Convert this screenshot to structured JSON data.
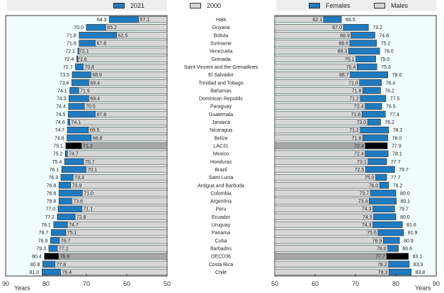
{
  "chart_data": [
    {
      "type": "bar",
      "title": "",
      "panel": "left",
      "orientation": "horizontal",
      "xaxis_reversed": true,
      "xlim": [
        50,
        90
      ],
      "xticks": [
        90,
        80,
        70,
        60,
        50
      ],
      "xlabel": "Years",
      "legend": {
        "placement": "top",
        "entries": [
          {
            "name": "2021",
            "color": "#1f7bc0"
          },
          {
            "name": "2000",
            "color": "#d6d6d6"
          }
        ]
      },
      "categories": [
        "Haiti",
        "Guyana",
        "Bolivia",
        "Suriname",
        "Venezuela",
        "Grenada",
        "Saint Vincent and the Grenadines",
        "El Salvador",
        "Trinidad and Tobago",
        "Bahamas",
        "Dominican Republic",
        "Paraguay",
        "Guatemala",
        "Jamaica",
        "Nicaragua",
        "Belize",
        "LAC31",
        "Mexico",
        "Honduras",
        "Brazil",
        "Saint Lucia",
        "Antigua and Barbuda",
        "Colombia",
        "Argentina",
        "Peru",
        "Ecuador",
        "Uruguay",
        "Panama",
        "Cuba",
        "Barbados",
        "OECD36",
        "Costa Rica",
        "Chile"
      ],
      "series": [
        {
          "name": "2021",
          "values": [
            64.3,
            70.0,
            71.8,
            71.8,
            72.1,
            72.4,
            72.7,
            73.5,
            73.6,
            74.1,
            74.3,
            74.4,
            74.5,
            74.6,
            74.7,
            74.8,
            75.1,
            75.2,
            75.4,
            76.1,
            76.3,
            76.8,
            76.8,
            76.8,
            77.0,
            77.2,
            78.1,
            78.7,
            78.9,
            79.3,
            80.4,
            80.8,
            81.0
          ]
        },
        {
          "name": "2000",
          "values": [
            57.1,
            65.2,
            62.5,
            67.8,
            72.1,
            72.6,
            70.8,
            68.9,
            69.4,
            71.9,
            69.4,
            70.5,
            67.8,
            74.1,
            69.5,
            68.8,
            71.2,
            74.7,
            70.7,
            70.1,
            73.3,
            73.9,
            71.0,
            73.6,
            71.1,
            72.8,
            74.7,
            75.1,
            76.7,
            77.2,
            76.9,
            77.8,
            76.4
          ]
        }
      ],
      "highlight": [
        "LAC31",
        "OECD36"
      ]
    },
    {
      "type": "bar",
      "title": "",
      "panel": "right",
      "orientation": "horizontal",
      "xlim": [
        50,
        90
      ],
      "xticks": [
        50,
        60,
        70,
        80,
        90
      ],
      "xlabel": "Years",
      "legend": {
        "placement": "top",
        "entries": [
          {
            "name": "Females",
            "color": "#1f7bc0"
          },
          {
            "name": "Males",
            "color": "#d6d6d6"
          }
        ]
      },
      "categories": [
        "Haiti",
        "Guyana",
        "Bolivia",
        "Suriname",
        "Venezuela",
        "Grenada",
        "Saint Vincent and the Grenadines",
        "El Salvador",
        "Trinidad and Tobago",
        "Bahamas",
        "Dominican Republic",
        "Paraguay",
        "Guatemala",
        "Jamaica",
        "Nicaragua",
        "Belize",
        "LAC31",
        "Mexico",
        "Honduras",
        "Brazil",
        "Saint Lucia",
        "Antigua and Barbuda",
        "Colombia",
        "Argentina",
        "Peru",
        "Ecuador",
        "Uruguay",
        "Panama",
        "Cuba",
        "Barbados",
        "OECD36",
        "Costa Rica",
        "Chile"
      ],
      "series": [
        {
          "name": "Males",
          "values": [
            62.1,
            67.0,
            68.9,
            68.6,
            68.3,
            70.1,
            70.4,
            68.7,
            71.0,
            71.8,
            71.2,
            72.4,
            71.6,
            73.0,
            71.2,
            71.8,
            72.4,
            72.4,
            73.1,
            72.5,
            75.0,
            76.0,
            73.7,
            73.4,
            74.3,
            74.5,
            74.3,
            75.6,
            76.9,
            78.0,
            77.7,
            78.2,
            78.3
          ]
        },
        {
          "name": "Females",
          "values": [
            66.5,
            73.2,
            74.8,
            75.2,
            76.0,
            75.0,
            75.3,
            78.0,
            76.4,
            76.2,
            77.5,
            76.5,
            77.4,
            76.2,
            78.2,
            78.0,
            77.9,
            78.1,
            77.7,
            79.7,
            77.7,
            78.2,
            80.0,
            80.1,
            79.7,
            80.0,
            81.6,
            81.9,
            80.9,
            80.6,
            83.1,
            83.3,
            83.8
          ]
        }
      ],
      "highlight": [
        "LAC31",
        "OECD36"
      ]
    }
  ],
  "legends": {
    "left": [
      {
        "label": "2021",
        "color": "#1f7bc0"
      },
      {
        "label": "2000",
        "color": "#d6d6d6"
      }
    ],
    "right": [
      {
        "label": "Females",
        "color": "#1f7bc0"
      },
      {
        "label": "Males",
        "color": "#d6d6d6"
      }
    ]
  },
  "axis": {
    "left_unit": "Years",
    "right_unit": "Years"
  },
  "colors": {
    "primary": "#1f7bc0",
    "secondary": "#d6d6d6",
    "highlight_primary": "#000000",
    "highlight_secondary": "#a6a6a6",
    "plot_bg": "#f2fdff"
  }
}
